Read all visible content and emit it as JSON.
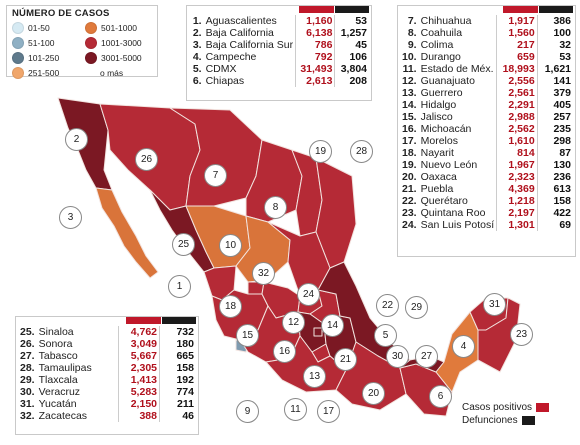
{
  "legend": {
    "title": "NÚMERO DE CASOS",
    "items": [
      {
        "label": "01-50",
        "color": "#d6eaf3"
      },
      {
        "label": "501-1000",
        "color": "#e07a3c"
      },
      {
        "label": "51-100",
        "color": "#8fb0c4"
      },
      {
        "label": "1001-3000",
        "color": "#b52a36"
      },
      {
        "label": "101-250",
        "color": "#5f7a8c"
      },
      {
        "label": "3001-5000",
        "color": "#7b1823"
      },
      {
        "label": "251-500",
        "color": "#f0a66b"
      },
      {
        "label": "o más",
        "color": ""
      }
    ]
  },
  "states": [
    {
      "num": "1.",
      "name": "Aguascalientes",
      "cases": "1,160",
      "deaths": "53"
    },
    {
      "num": "2.",
      "name": "Baja California",
      "cases": "6,138",
      "deaths": "1,257"
    },
    {
      "num": "3.",
      "name": "Baja California Sur",
      "cases": "786",
      "deaths": "45"
    },
    {
      "num": "4.",
      "name": "Campeche",
      "cases": "792",
      "deaths": "106"
    },
    {
      "num": "5.",
      "name": "CDMX",
      "cases": "31,493",
      "deaths": "3,804"
    },
    {
      "num": "6.",
      "name": "Chiapas",
      "cases": "2,613",
      "deaths": "208"
    },
    {
      "num": "7.",
      "name": "Chihuahua",
      "cases": "1,917",
      "deaths": "386"
    },
    {
      "num": "8.",
      "name": "Coahuila",
      "cases": "1,560",
      "deaths": "100"
    },
    {
      "num": "9.",
      "name": "Colima",
      "cases": "217",
      "deaths": "32"
    },
    {
      "num": "10.",
      "name": "Durango",
      "cases": "659",
      "deaths": "53"
    },
    {
      "num": "11.",
      "name": "Estado de Méx.",
      "cases": "18,993",
      "deaths": "1,621"
    },
    {
      "num": "12.",
      "name": "Guanajuato",
      "cases": "2,556",
      "deaths": "141"
    },
    {
      "num": "13.",
      "name": "Guerrero",
      "cases": "2,561",
      "deaths": "379"
    },
    {
      "num": "14.",
      "name": "Hidalgo",
      "cases": "2,291",
      "deaths": "405"
    },
    {
      "num": "15.",
      "name": "Jalisco",
      "cases": "2,988",
      "deaths": "257"
    },
    {
      "num": "16.",
      "name": "Michoacán",
      "cases": "2,562",
      "deaths": "235"
    },
    {
      "num": "17.",
      "name": "Morelos",
      "cases": "1,610",
      "deaths": "298"
    },
    {
      "num": "18.",
      "name": "Nayarit",
      "cases": "814",
      "deaths": "87"
    },
    {
      "num": "19.",
      "name": "Nuevo León",
      "cases": "1,967",
      "deaths": "130"
    },
    {
      "num": "20.",
      "name": "Oaxaca",
      "cases": "2,323",
      "deaths": "236"
    },
    {
      "num": "21.",
      "name": "Puebla",
      "cases": "4,369",
      "deaths": "613"
    },
    {
      "num": "22.",
      "name": "Querétaro",
      "cases": "1,218",
      "deaths": "158"
    },
    {
      "num": "23.",
      "name": "Quintana Roo",
      "cases": "2,197",
      "deaths": "422"
    },
    {
      "num": "24.",
      "name": "San Luis Potosí",
      "cases": "1,301",
      "deaths": "69"
    },
    {
      "num": "25.",
      "name": "Sinaloa",
      "cases": "4,762",
      "deaths": "732"
    },
    {
      "num": "26.",
      "name": "Sonora",
      "cases": "3,049",
      "deaths": "180"
    },
    {
      "num": "27.",
      "name": "Tabasco",
      "cases": "5,667",
      "deaths": "665"
    },
    {
      "num": "28.",
      "name": "Tamaulipas",
      "cases": "2,305",
      "deaths": "158"
    },
    {
      "num": "29.",
      "name": "Tlaxcala",
      "cases": "1,413",
      "deaths": "192"
    },
    {
      "num": "30.",
      "name": "Veracruz",
      "cases": "5,283",
      "deaths": "774"
    },
    {
      "num": "31.",
      "name": "Yucatán",
      "cases": "2,150",
      "deaths": "211"
    },
    {
      "num": "32.",
      "name": "Zacatecas",
      "cases": "388",
      "deaths": "46"
    }
  ],
  "map_labels": [
    "2",
    "26",
    "7",
    "3",
    "19",
    "28",
    "8",
    "10",
    "25",
    "32",
    "1",
    "24",
    "22",
    "29",
    "18",
    "12",
    "14",
    "31",
    "23",
    "15",
    "16",
    "5",
    "11",
    "13",
    "17",
    "21",
    "4",
    "30",
    "27",
    "9",
    "20",
    "6"
  ],
  "key": {
    "cases_label": "Casos positivos",
    "deaths_label": "Defunciones",
    "cases_color": "#c0182a",
    "deaths_color": "#1a1a1a"
  },
  "colors": {
    "dark": "#7b1823",
    "mid": "#b52a36",
    "orange": "#d9743a",
    "lightorange": "#e99a5e",
    "blue": "#7f9bb0",
    "border": "#e9d7d2"
  }
}
